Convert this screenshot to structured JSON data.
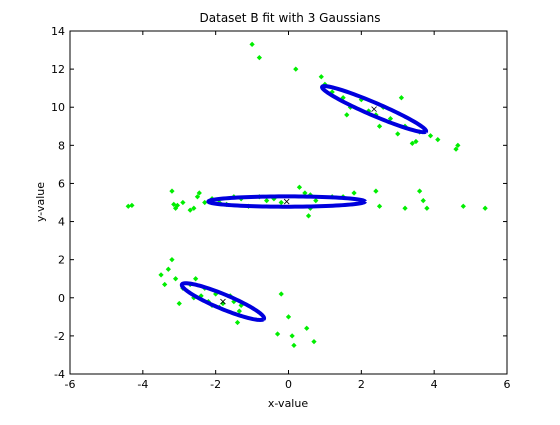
{
  "chart_data": {
    "type": "scatter",
    "title": "Dataset B fit with 3 Gaussians",
    "xlabel": "x-value",
    "ylabel": "y-value",
    "xlim": [
      -6,
      6
    ],
    "ylim": [
      -4,
      14
    ],
    "xticks": [
      -6,
      -4,
      -2,
      0,
      2,
      4,
      6
    ],
    "yticks": [
      -4,
      -2,
      0,
      2,
      4,
      6,
      8,
      10,
      12,
      14
    ],
    "grid": false,
    "colors": {
      "points": "#00ee00",
      "ellipses": "#0000dd",
      "centers": "#000000"
    },
    "points": [
      [
        -4.4,
        4.8
      ],
      [
        -4.3,
        4.85
      ],
      [
        -3.2,
        5.6
      ],
      [
        -3.15,
        4.9
      ],
      [
        -3.1,
        4.7
      ],
      [
        -3.05,
        4.85
      ],
      [
        -2.9,
        5.0
      ],
      [
        -2.7,
        4.6
      ],
      [
        -2.6,
        4.7
      ],
      [
        -2.5,
        5.3
      ],
      [
        -2.45,
        5.5
      ],
      [
        -2.3,
        5.0
      ],
      [
        -2.1,
        5.2
      ],
      [
        -1.9,
        5.0
      ],
      [
        -1.7,
        4.9
      ],
      [
        -1.5,
        5.3
      ],
      [
        -1.3,
        5.2
      ],
      [
        -1.1,
        4.8
      ],
      [
        -0.8,
        5.3
      ],
      [
        -0.6,
        5.1
      ],
      [
        -0.4,
        5.2
      ],
      [
        -0.2,
        5.0
      ],
      [
        0.3,
        5.8
      ],
      [
        0.45,
        5.5
      ],
      [
        0.6,
        5.4
      ],
      [
        0.75,
        5.1
      ],
      [
        0.6,
        4.7
      ],
      [
        0.55,
        4.3
      ],
      [
        1.2,
        5.3
      ],
      [
        1.5,
        5.3
      ],
      [
        1.8,
        5.5
      ],
      [
        2.4,
        5.6
      ],
      [
        2.5,
        4.8
      ],
      [
        3.2,
        4.7
      ],
      [
        3.6,
        5.6
      ],
      [
        3.7,
        5.1
      ],
      [
        3.8,
        4.7
      ],
      [
        4.8,
        4.8
      ],
      [
        5.4,
        4.7
      ],
      [
        0.9,
        11.6
      ],
      [
        1.0,
        11.2
      ],
      [
        1.2,
        10.8
      ],
      [
        1.5,
        10.5
      ],
      [
        1.6,
        9.6
      ],
      [
        1.7,
        10.0
      ],
      [
        2.0,
        10.4
      ],
      [
        2.2,
        9.8
      ],
      [
        2.4,
        9.6
      ],
      [
        2.5,
        9.0
      ],
      [
        2.6,
        10.0
      ],
      [
        2.8,
        9.4
      ],
      [
        3.0,
        8.6
      ],
      [
        3.1,
        10.5
      ],
      [
        3.2,
        9.0
      ],
      [
        3.4,
        8.1
      ],
      [
        3.5,
        8.2
      ],
      [
        3.6,
        8.7
      ],
      [
        3.9,
        8.5
      ],
      [
        4.1,
        8.3
      ],
      [
        4.6,
        7.8
      ],
      [
        4.65,
        8.0
      ],
      [
        -1.0,
        13.3
      ],
      [
        -0.8,
        12.6
      ],
      [
        0.2,
        12.0
      ],
      [
        -3.5,
        1.2
      ],
      [
        -3.4,
        0.7
      ],
      [
        -3.3,
        1.5
      ],
      [
        -3.2,
        2.0
      ],
      [
        -3.1,
        1.0
      ],
      [
        -3.0,
        -0.3
      ],
      [
        -2.9,
        0.5
      ],
      [
        -2.7,
        0.7
      ],
      [
        -2.6,
        0.0
      ],
      [
        -2.55,
        1.0
      ],
      [
        -2.4,
        0.1
      ],
      [
        -2.3,
        0.5
      ],
      [
        -2.2,
        -0.2
      ],
      [
        -2.1,
        -0.4
      ],
      [
        -2.0,
        0.2
      ],
      [
        -1.9,
        -0.5
      ],
      [
        -1.8,
        -0.3
      ],
      [
        -1.6,
        0.1
      ],
      [
        -1.5,
        -0.2
      ],
      [
        -1.4,
        -1.3
      ],
      [
        -1.35,
        -0.7
      ],
      [
        -1.3,
        -0.4
      ],
      [
        -0.2,
        0.2
      ],
      [
        0.0,
        -1.0
      ],
      [
        0.1,
        -2.0
      ],
      [
        0.15,
        -2.5
      ],
      [
        -0.3,
        -1.9
      ],
      [
        0.5,
        -1.6
      ],
      [
        0.7,
        -2.3
      ]
    ],
    "components": [
      {
        "center": [
          -1.8,
          -0.2
        ],
        "semi_major": 1.45,
        "semi_minor": 0.32,
        "angle_deg": -40
      },
      {
        "center": [
          -0.05,
          5.05
        ],
        "semi_major": 2.15,
        "semi_minor": 0.27,
        "angle_deg": 0
      },
      {
        "center": [
          2.35,
          9.9
        ],
        "semi_major": 1.85,
        "semi_minor": 0.28,
        "angle_deg": -40
      }
    ]
  }
}
